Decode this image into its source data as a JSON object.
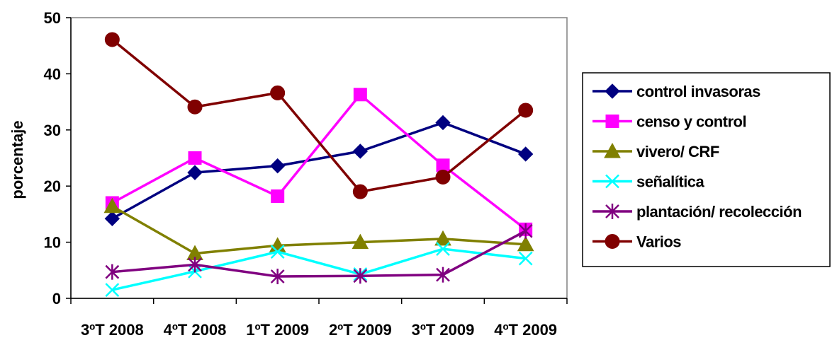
{
  "chart_data": {
    "type": "line",
    "title": "",
    "xlabel": "",
    "ylabel": "porcentaje",
    "categories": [
      "3ºT 2008",
      "4ºT 2008",
      "1ºT 2009",
      "2ºT 2009",
      "3ºT 2009",
      "4ºT 2009"
    ],
    "ylim": [
      0,
      50
    ],
    "yticks": [
      0,
      10,
      20,
      30,
      40,
      50
    ],
    "grid": false,
    "legend_position": "right",
    "series": [
      {
        "name": "control invasoras",
        "color": "#000080",
        "marker": "diamond",
        "values": [
          14.2,
          22.4,
          23.6,
          26.2,
          31.3,
          25.7
        ]
      },
      {
        "name": "censo y control",
        "color": "#ff00ff",
        "marker": "square",
        "values": [
          17.0,
          25.0,
          18.2,
          36.3,
          23.7,
          12.3
        ]
      },
      {
        "name": "vivero/ CRF",
        "color": "#808000",
        "marker": "triangle",
        "values": [
          16.4,
          8.0,
          9.4,
          10.0,
          10.6,
          9.6
        ]
      },
      {
        "name": "señalítica",
        "color": "#00ffff",
        "marker": "x",
        "values": [
          1.5,
          4.8,
          8.3,
          4.3,
          8.8,
          7.1
        ]
      },
      {
        "name": "plantación/ recolección",
        "color": "#800080",
        "marker": "star",
        "values": [
          4.7,
          6.0,
          3.9,
          4.0,
          4.2,
          12.0
        ]
      },
      {
        "name": "Varios",
        "color": "#800000",
        "marker": "circle",
        "values": [
          46.1,
          34.1,
          36.6,
          19.0,
          21.6,
          33.5
        ]
      }
    ]
  }
}
